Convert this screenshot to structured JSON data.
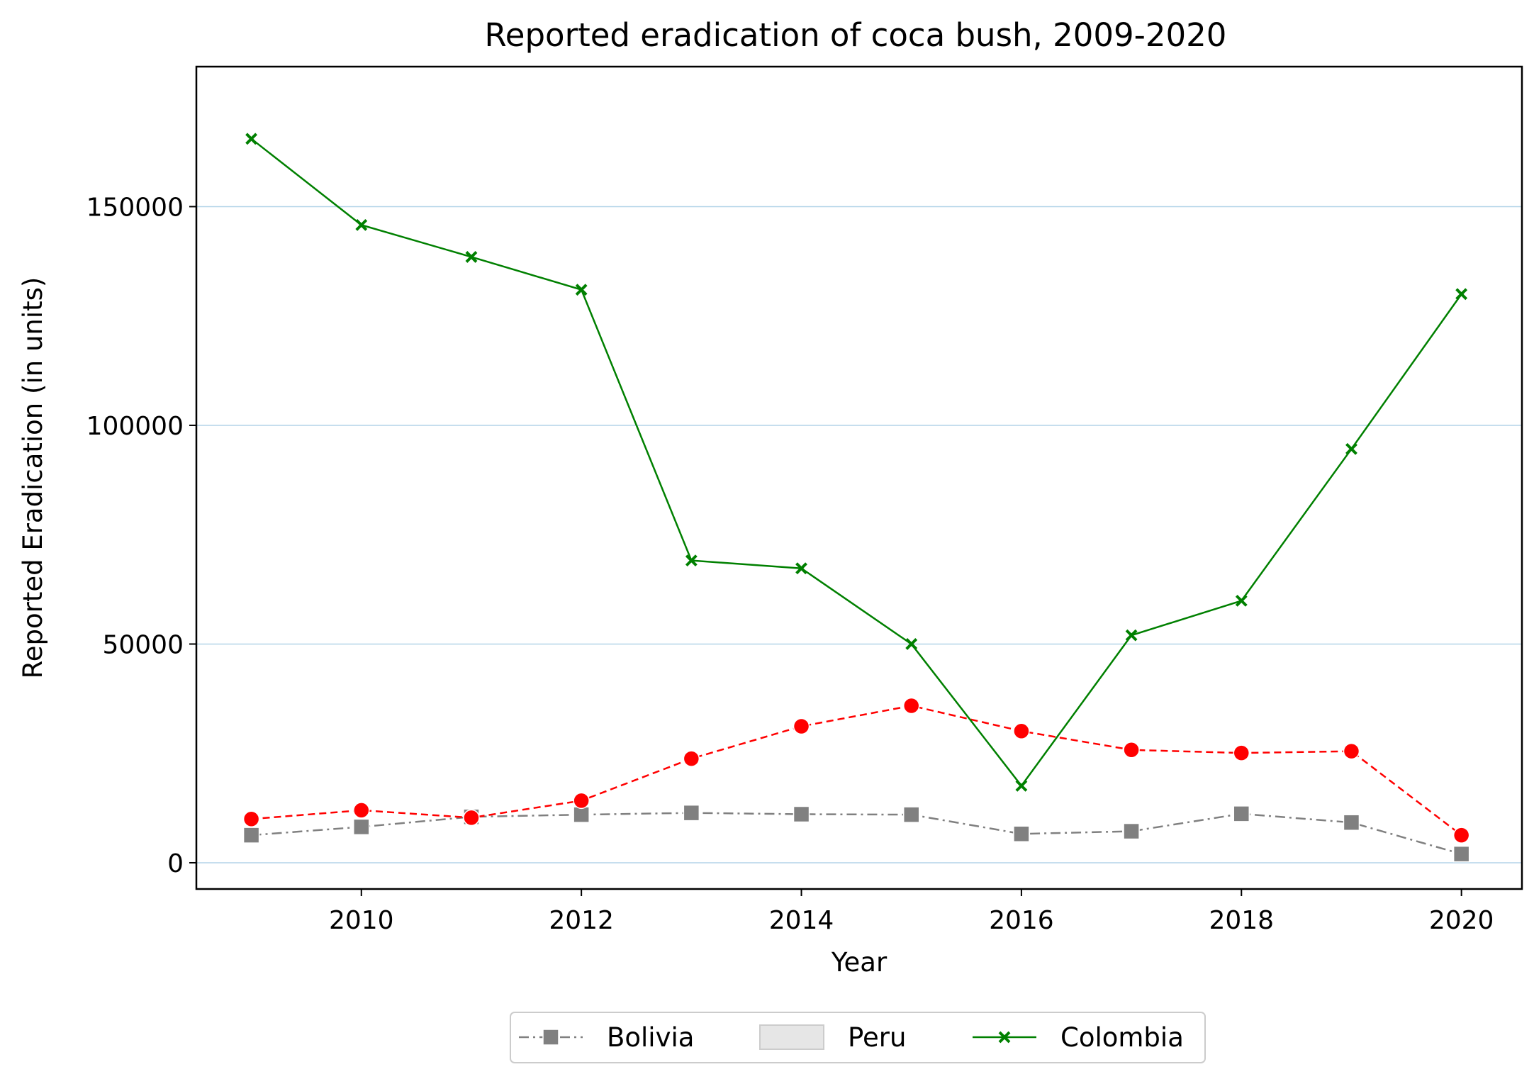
{
  "chart_data": {
    "type": "line",
    "title": "Reported eradication of coca bush, 2009-2020",
    "xlabel": "Year",
    "ylabel": "Reported Eradication (in units)",
    "x": [
      2009,
      2010,
      2011,
      2012,
      2013,
      2014,
      2015,
      2016,
      2017,
      2018,
      2019,
      2020
    ],
    "xlim": [
      2008.5,
      2020.55
    ],
    "ylim": [
      -6000,
      182000
    ],
    "x_ticks": [
      "2010",
      "2012",
      "2014",
      "2016",
      "2018",
      "2020"
    ],
    "y_ticks": [
      "0",
      "50000",
      "100000",
      "150000"
    ],
    "grid": "horizontal lines",
    "legend_position": "below chart",
    "series": [
      {
        "name": "Bolivia",
        "color": "#808080",
        "line_style": "dash-dot",
        "marker": "square",
        "values": [
          6300,
          8200,
          10500,
          11000,
          11400,
          11100,
          11000,
          6600,
          7200,
          11200,
          9200,
          2000
        ]
      },
      {
        "name": "Peru",
        "color": "#ff0000",
        "line_style": "dashed",
        "marker": "circle",
        "values": [
          10000,
          12000,
          10300,
          14200,
          23800,
          31200,
          35900,
          30100,
          25800,
          25100,
          25500,
          6300
        ]
      },
      {
        "name": "Colombia",
        "color": "#008000",
        "line_style": "solid",
        "marker": "x",
        "values": [
          165500,
          145800,
          138500,
          131000,
          69100,
          67300,
          50000,
          17600,
          52000,
          59900,
          94600,
          130000
        ]
      }
    ],
    "legend": [
      {
        "label": "Bolivia",
        "swatch": "line-square",
        "color": "#808080"
      },
      {
        "label": "Peru",
        "swatch": "patch",
        "color": "#e6e6e6"
      },
      {
        "label": "Colombia",
        "swatch": "line-x",
        "color": "#008000"
      }
    ]
  }
}
